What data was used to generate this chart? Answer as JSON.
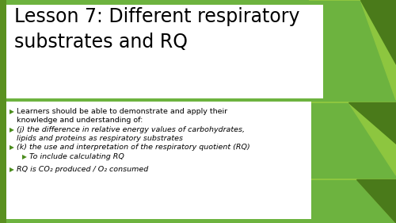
{
  "title_line1": "Lesson 7: Different respiratory",
  "title_line2": "substrates and RQ",
  "slide_bg": "#6db33f",
  "title_color": "#000000",
  "content_color": "#000000",
  "bullet_color": "#4a8c1c",
  "green_mid": "#7ab536",
  "green_dark": "#4a7a1a",
  "green_light": "#8dc63f",
  "white": "#ffffff",
  "bullet_points": [
    {
      "level": 0,
      "text_parts": [
        [
          "Learners should be able to demonstrate and apply their\nknowledge and understanding of:",
          false
        ]
      ],
      "italic": false
    },
    {
      "level": 0,
      "text_parts": [
        [
          "(j) the difference in relative energy values of carbohydrates,\nlipids and proteins as respiratory substrates",
          true
        ]
      ],
      "italic": true
    },
    {
      "level": 0,
      "text_parts": [
        [
          "(k) the use and interpretation of the respiratory quotient (RQ)",
          true
        ]
      ],
      "italic": true
    },
    {
      "level": 1,
      "text_parts": [
        [
          "To include calculating RQ",
          true
        ]
      ],
      "italic": true
    },
    {
      "level": 0,
      "text_parts": [
        [
          "RQ is CO",
          true
        ],
        [
          "2",
          true
        ],
        [
          " produced / O",
          true
        ],
        [
          "2",
          true
        ],
        [
          " consumed",
          true
        ]
      ],
      "italic": true,
      "subscript": [
        false,
        true,
        false,
        true,
        false
      ]
    }
  ]
}
